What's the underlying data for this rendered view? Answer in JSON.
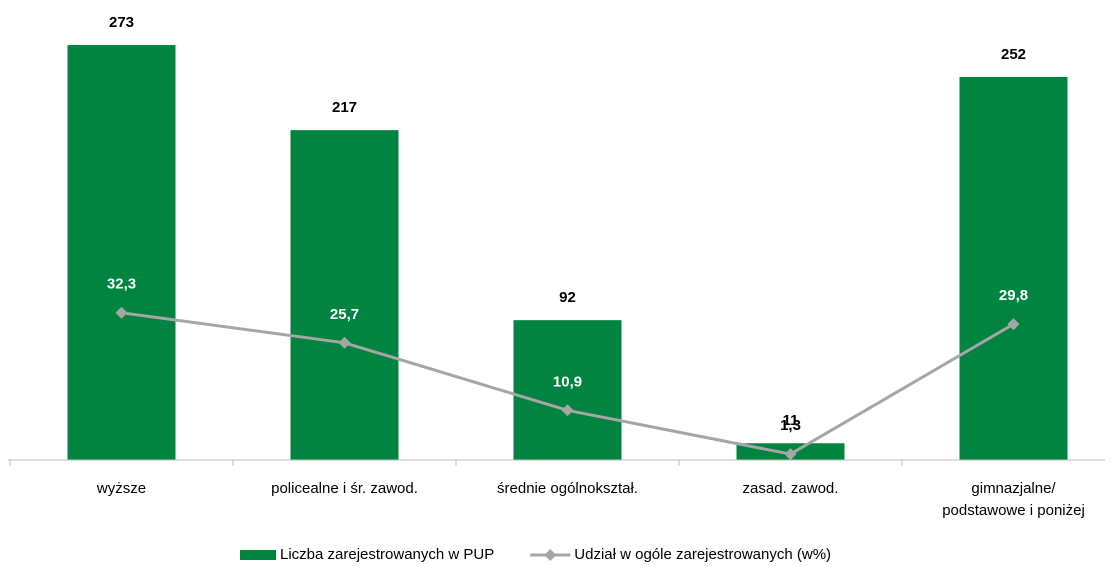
{
  "chart_data": {
    "type": "bar",
    "categories": [
      "wyższe",
      "policealne i śr. zawod.",
      "średnie ogólnokształ.",
      "zasad. zawod.",
      "gimnazjalne/\npodstawowe i poniżej"
    ],
    "series": [
      {
        "name": "Liczba zarejestrowanych w PUP",
        "type": "bar",
        "color": "#00843f",
        "values": [
          273,
          217,
          92,
          11,
          252
        ]
      },
      {
        "name": "Udział w ogóle zarejestrowanych (w%)",
        "type": "line",
        "axis": "y2",
        "color": "#a6a6a6",
        "values": [
          32.3,
          25.7,
          10.9,
          1.3,
          29.8
        ],
        "value_labels": [
          "32,3",
          "25,7",
          "10,9",
          "1,3",
          "29,8"
        ]
      }
    ],
    "ylim": [
      0,
      300
    ],
    "y2lim": [
      0,
      100
    ],
    "legend": "bottom"
  }
}
